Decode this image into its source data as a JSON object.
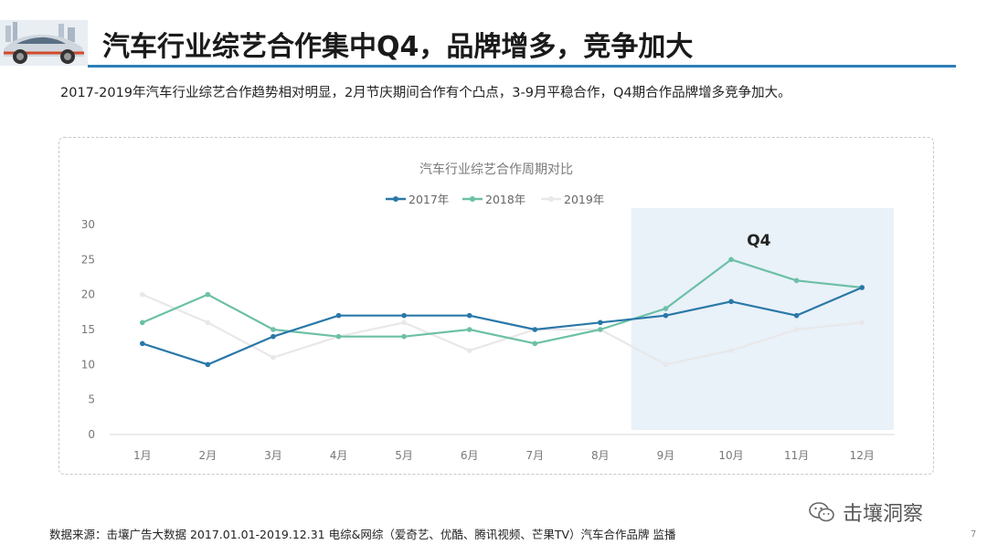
{
  "header": {
    "title": "汽车行业综艺合作集中Q4，品牌增多，竞争加大",
    "subtitle": "2017-2019年汽车行业综艺合作趋势相对明显，2月节庆期间合作有个凸点，3-9月平稳合作，Q4期合作品牌增多竞争加大。"
  },
  "footer": {
    "source": "数据来源：击壤广告大数据 2017.01.01-2019.12.31  电综&网综（爱奇艺、优酷、腾讯视频、芒果TV）汽车合作品牌 监播",
    "brand": "击壤洞察",
    "page_number": "7"
  },
  "chart_data": {
    "type": "line",
    "title": "汽车行业综艺合作周期对比",
    "categories": [
      "1月",
      "2月",
      "3月",
      "4月",
      "5月",
      "6月",
      "7月",
      "8月",
      "9月",
      "10月",
      "11月",
      "12月"
    ],
    "ylim": [
      0,
      30
    ],
    "yticks": [
      0,
      5,
      10,
      15,
      20,
      25,
      30
    ],
    "grid": false,
    "legend_position": "top-center",
    "series": [
      {
        "name": "2017年",
        "color": "#2a78a8",
        "values": [
          13,
          10,
          14,
          17,
          17,
          17,
          15,
          16,
          17,
          19,
          17,
          21
        ]
      },
      {
        "name": "2018年",
        "color": "#6cc0a6",
        "values": [
          16,
          20,
          15,
          14,
          14,
          15,
          13,
          15,
          18,
          25,
          22,
          21
        ]
      },
      {
        "name": "2019年",
        "color": "#e8e8ea",
        "values": [
          20,
          16,
          11,
          14,
          16,
          12,
          15,
          15,
          10,
          12,
          15,
          16
        ]
      }
    ],
    "highlight": {
      "label": "Q4",
      "from": "9月",
      "to": "12月",
      "color": "#e9f1f9"
    }
  }
}
